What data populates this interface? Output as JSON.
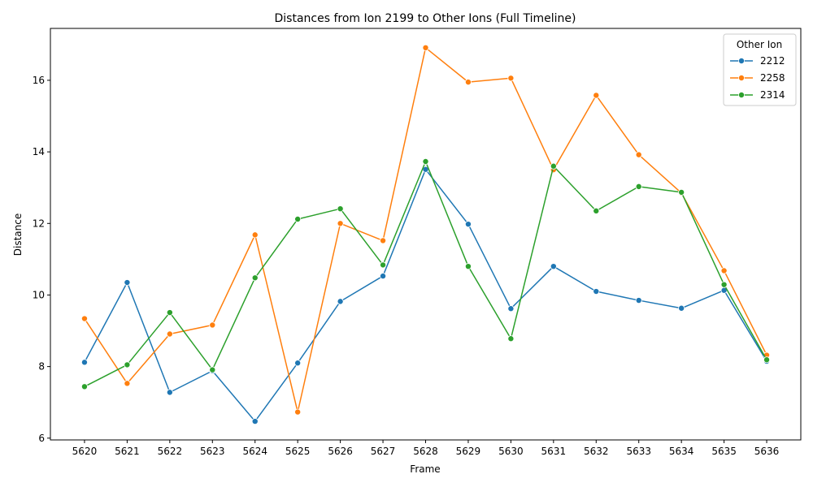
{
  "chart_data": {
    "type": "line",
    "title": "Distances from Ion 2199 to Other Ions (Full Timeline)",
    "xlabel": "Frame",
    "ylabel": "Distance",
    "x": [
      "5620",
      "5621",
      "5622",
      "5623",
      "5624",
      "5625",
      "5626",
      "5627",
      "5628",
      "5629",
      "5630",
      "5631",
      "5632",
      "5633",
      "5634",
      "5635",
      "5636"
    ],
    "ylim": [
      5.95,
      17.45
    ],
    "yticks": [
      6,
      8,
      10,
      12,
      14,
      16
    ],
    "grid": false,
    "legend": {
      "title": "Other Ion",
      "placement": "top-right"
    },
    "series": [
      {
        "name": "2212",
        "color": "#1f77b4",
        "values": [
          8.12,
          10.35,
          7.28,
          7.88,
          6.47,
          8.1,
          9.82,
          10.53,
          13.51,
          11.98,
          9.62,
          10.8,
          10.1,
          9.85,
          9.63,
          10.13,
          8.15
        ]
      },
      {
        "name": "2258",
        "color": "#ff7f0e",
        "values": [
          9.34,
          7.53,
          8.91,
          9.16,
          11.68,
          6.73,
          12.0,
          11.52,
          16.91,
          15.95,
          16.06,
          13.5,
          15.58,
          13.92,
          12.85,
          10.68,
          8.32
        ]
      },
      {
        "name": "2314",
        "color": "#2ca02c",
        "values": [
          7.44,
          8.05,
          9.51,
          7.91,
          10.48,
          12.12,
          12.41,
          10.84,
          13.73,
          10.8,
          8.78,
          13.6,
          12.35,
          13.03,
          12.87,
          10.29,
          8.19
        ]
      }
    ]
  }
}
